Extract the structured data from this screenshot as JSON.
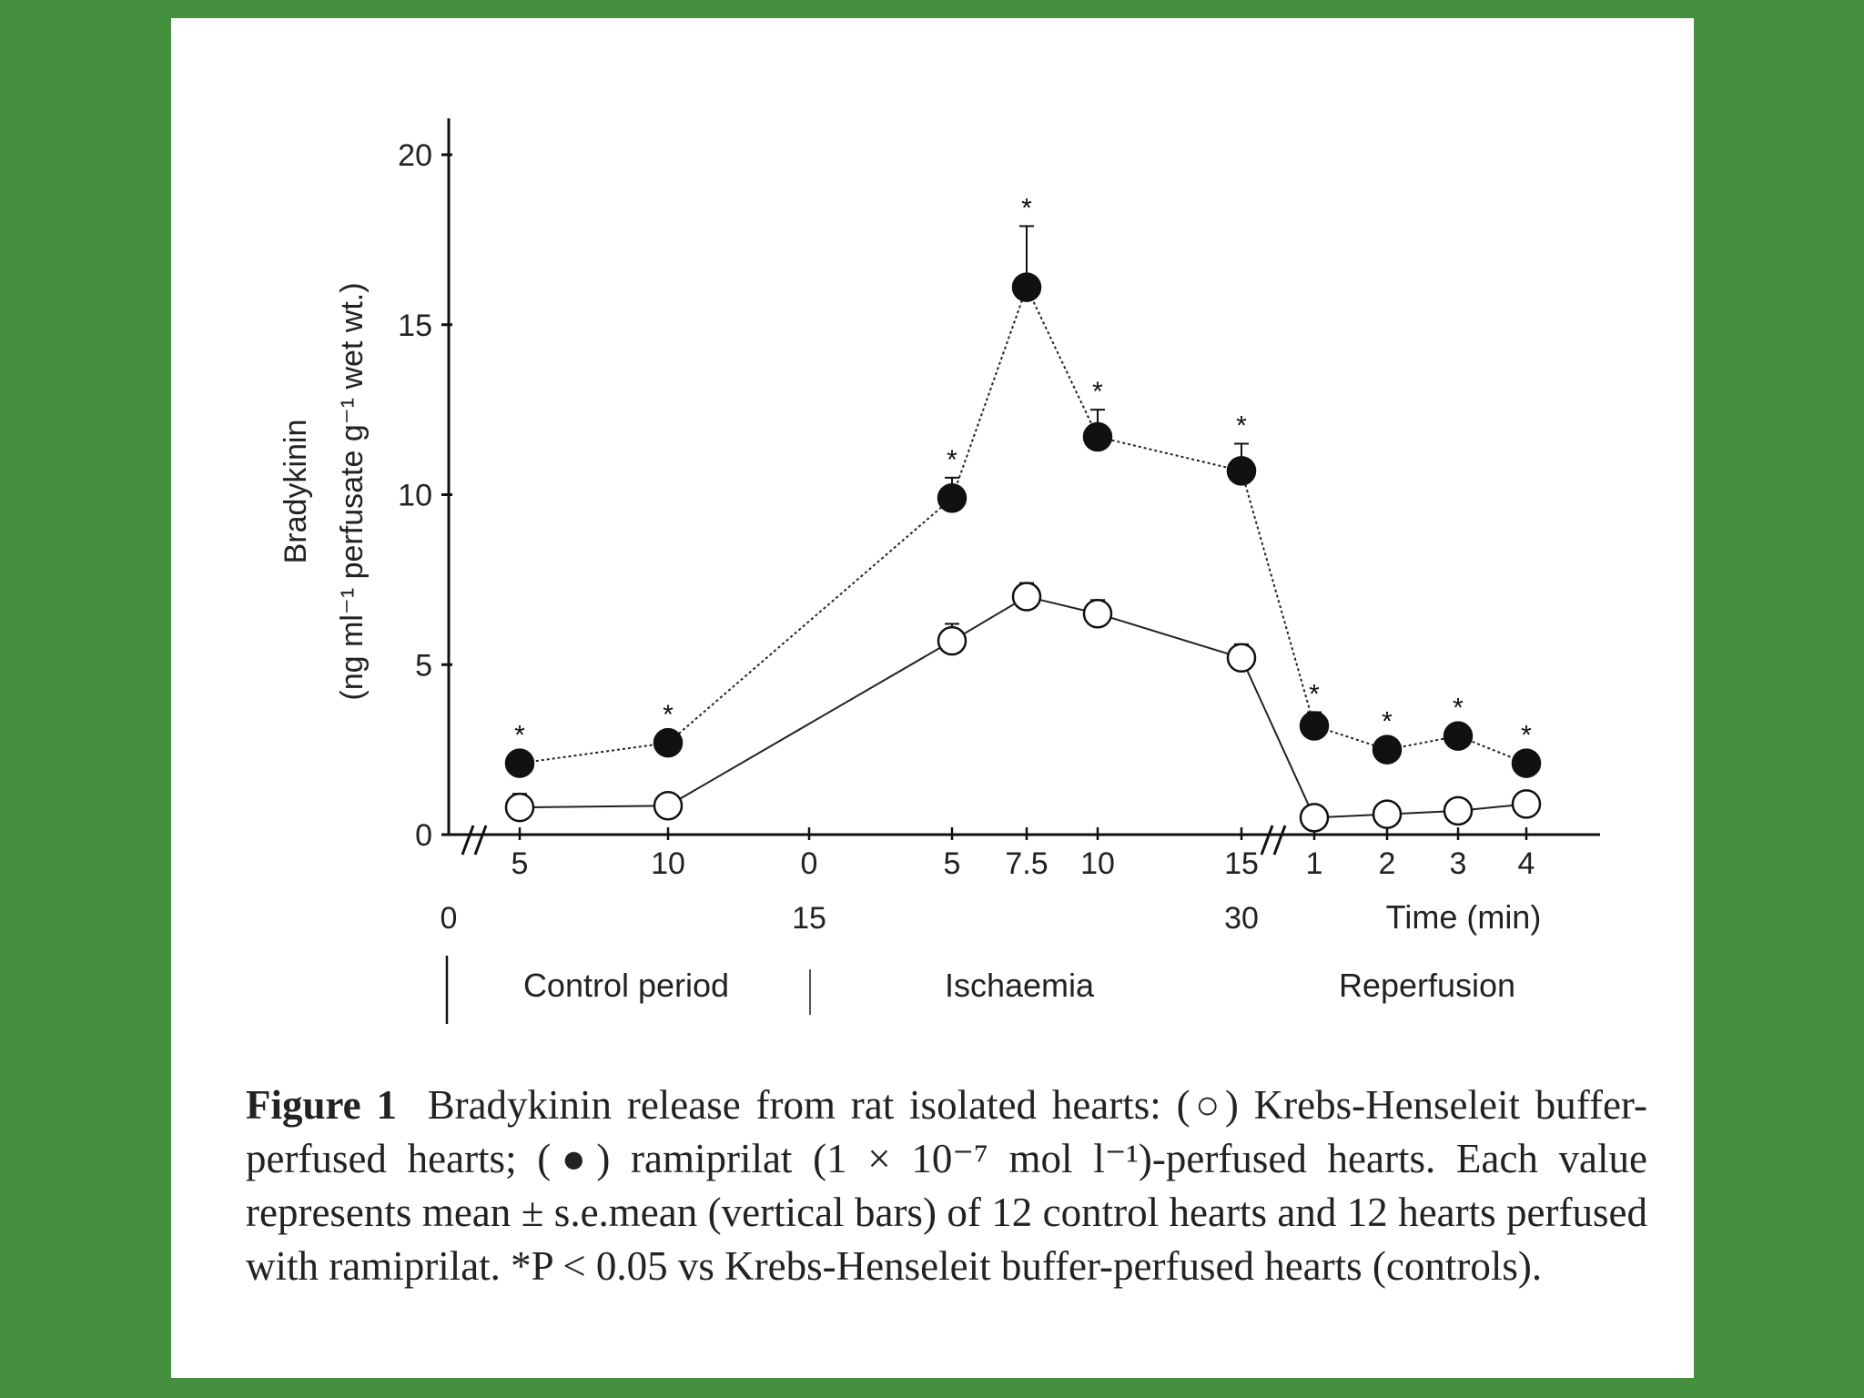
{
  "chart_data": {
    "type": "line",
    "ylabel_line1": "Bradykinin",
    "ylabel_line2": "(ng ml⁻¹ perfusate g⁻¹ wet wt.)",
    "yticks": [
      0,
      5,
      10,
      15,
      20
    ],
    "ylim": [
      0,
      20
    ],
    "xlabel": "Time (min)",
    "categories": [
      "5",
      "10",
      "0",
      "5",
      "7.5",
      "10",
      "15",
      "1",
      "2",
      "3",
      "4"
    ],
    "cumulative_ticks": [
      "0",
      "15",
      "30"
    ],
    "periods": [
      "Control period",
      "Ischaemia",
      "Reperfusion"
    ],
    "series": [
      {
        "name": "Krebs-Henseleit buffer-perfused hearts (○)",
        "marker": "open",
        "x": [
          "5",
          "10",
          "5",
          "7.5",
          "10",
          "15",
          "1",
          "2",
          "3",
          "4"
        ],
        "values": [
          0.8,
          0.85,
          5.7,
          7.0,
          6.5,
          5.2,
          0.5,
          0.6,
          0.7,
          0.9
        ],
        "errors": [
          0.4,
          0.3,
          0.5,
          0.4,
          0.4,
          0.4,
          0.3,
          0.3,
          0.3,
          0.3
        ]
      },
      {
        "name": "ramiprilat-perfused hearts (●)",
        "marker": "filled",
        "x": [
          "5",
          "10",
          "5",
          "7.5",
          "10",
          "15",
          "1",
          "2",
          "3",
          "4"
        ],
        "values": [
          2.1,
          2.7,
          9.9,
          16.1,
          11.7,
          10.7,
          3.2,
          2.5,
          2.9,
          2.1
        ],
        "errors": [
          0.3,
          0.3,
          0.6,
          1.8,
          0.8,
          0.8,
          0.4,
          0.3,
          0.3,
          0.3
        ],
        "significance": [
          "*",
          "*",
          "*",
          "*",
          "*",
          "*",
          "*",
          "*",
          "*",
          "*"
        ]
      }
    ]
  },
  "caption": {
    "label": "Figure 1",
    "text": "Bradykinin release from rat isolated hearts: (○) Krebs-Henseleit buffer-perfused hearts; (●) ramiprilat (1 × 10⁻⁷ mol l⁻¹)-perfused hearts. Each value represents mean ± s.e.mean (vertical bars) of 12 control hearts and 12 hearts perfused with ramiprilat. *P < 0.05 vs Krebs-Henseleit buffer-perfused hearts (controls)."
  },
  "colors": {
    "background": "#45903f",
    "panel": "#ffffff",
    "ink": "#111111"
  }
}
